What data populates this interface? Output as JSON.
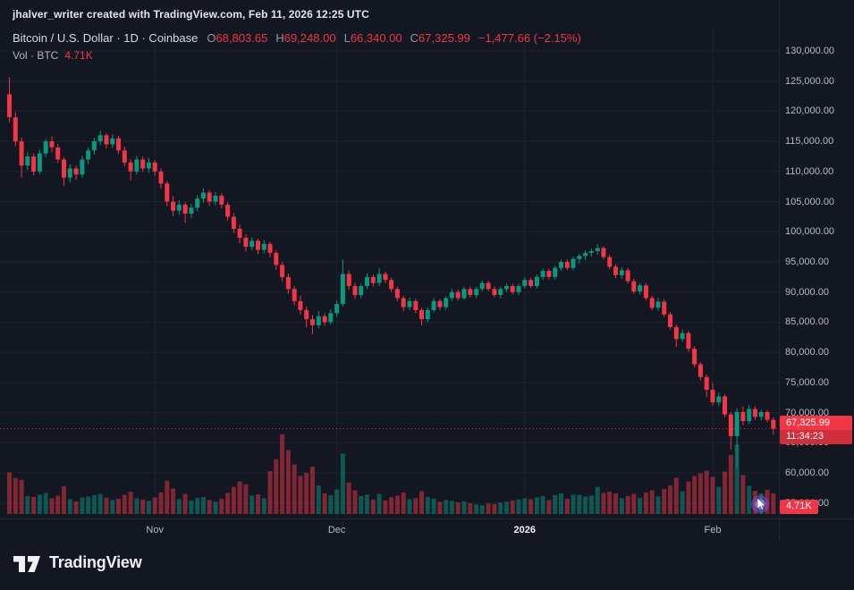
{
  "attribution": "jhalver_writer created with TradingView.com, Feb 11, 2026 12:25 UTC",
  "legend": {
    "title": "Bitcoin / U.S. Dollar · 1D · Coinbase",
    "o_label": "O",
    "o_value": "68,803.65",
    "h_label": "H",
    "h_value": "69,248.00",
    "l_label": "L",
    "l_value": "66,340.00",
    "c_label": "C",
    "c_value": "67,325.99",
    "change": "−1,477.66 (−2.15%)",
    "vol_title": "Vol · BTC",
    "vol_value": "4.71K"
  },
  "footer": {
    "logo_text": "TradingView"
  },
  "chart_data": {
    "type": "candlestick",
    "symbol": "Bitcoin / U.S. Dollar",
    "interval": "1D",
    "exchange": "Coinbase",
    "ohlc": {
      "open": 68803.65,
      "high": 69248.0,
      "low": 66340.0,
      "close": 67325.99,
      "change": -1477.66,
      "change_pct": -2.15
    },
    "last_price": 67325.99,
    "last_price_label": "67,325.99",
    "countdown": "11:34:23",
    "volume_label": "4.71K",
    "y_axis": {
      "max": 130000,
      "min": 55000,
      "step": 5000
    },
    "x_ticks": [
      {
        "i": 24,
        "label": "Nov"
      },
      {
        "i": 54,
        "label": "Dec"
      },
      {
        "i": 85,
        "label": "2026",
        "year": true
      },
      {
        "i": 116,
        "label": "Feb"
      }
    ],
    "colors": {
      "up": "#089981",
      "down": "#f23645",
      "up_volume": "rgba(8,153,129,0.5)",
      "down_volume": "rgba(242,54,69,0.5)",
      "background": "#131722",
      "grid": "#1e222d"
    },
    "candle_fields": [
      "open",
      "high",
      "low",
      "close",
      "volume_k_btc"
    ],
    "candles": [
      [
        122800,
        125600,
        118200,
        119000,
        9.5
      ],
      [
        119000,
        119800,
        114200,
        115000,
        8.2
      ],
      [
        115000,
        115600,
        109000,
        111000,
        7.8
      ],
      [
        111000,
        113200,
        110200,
        112500,
        4.1
      ],
      [
        112500,
        113000,
        109400,
        110000,
        3.9
      ],
      [
        110000,
        113600,
        109600,
        113000,
        4.4
      ],
      [
        113000,
        115400,
        112400,
        115000,
        4.8
      ],
      [
        115000,
        115800,
        113200,
        114000,
        3.6
      ],
      [
        114000,
        114600,
        111400,
        112000,
        4.2
      ],
      [
        112000,
        112400,
        107600,
        109000,
        6.3
      ],
      [
        109000,
        111200,
        108200,
        110500,
        3.4
      ],
      [
        110500,
        111000,
        108600,
        109500,
        2.9
      ],
      [
        109500,
        112600,
        109000,
        112000,
        3.8
      ],
      [
        112000,
        114000,
        111200,
        113500,
        4.0
      ],
      [
        113500,
        115600,
        112800,
        115000,
        4.3
      ],
      [
        115000,
        116800,
        114400,
        116000,
        4.6
      ],
      [
        116000,
        116400,
        113800,
        114500,
        3.7
      ],
      [
        114500,
        116200,
        113900,
        115500,
        3.2
      ],
      [
        115500,
        115900,
        112900,
        113500,
        3.5
      ],
      [
        113500,
        114100,
        110900,
        111500,
        4.4
      ],
      [
        111500,
        112000,
        108500,
        110000,
        5.1
      ],
      [
        110000,
        112600,
        109500,
        112000,
        3.6
      ],
      [
        112000,
        112500,
        109900,
        110500,
        3.3
      ],
      [
        110500,
        112300,
        109800,
        111500,
        3.0
      ],
      [
        111500,
        111900,
        109300,
        110000,
        3.8
      ],
      [
        110000,
        110500,
        107200,
        108000,
        4.9
      ],
      [
        108000,
        108400,
        104200,
        105000,
        7.6
      ],
      [
        105000,
        105900,
        102600,
        103500,
        5.8
      ],
      [
        103500,
        105200,
        102800,
        104500,
        3.4
      ],
      [
        104500,
        104900,
        101500,
        103000,
        4.6
      ],
      [
        103000,
        104700,
        102300,
        104000,
        3.1
      ],
      [
        104000,
        106100,
        103400,
        105500,
        3.7
      ],
      [
        105500,
        107200,
        104800,
        106500,
        3.9
      ],
      [
        106500,
        106900,
        104300,
        105000,
        3.2
      ],
      [
        105000,
        106600,
        104400,
        106000,
        2.8
      ],
      [
        106000,
        106400,
        103900,
        104500,
        3.5
      ],
      [
        104500,
        104900,
        101900,
        102500,
        4.8
      ],
      [
        102500,
        103100,
        99800,
        100500,
        6.2
      ],
      [
        100500,
        101200,
        98100,
        99000,
        7.4
      ],
      [
        99000,
        99600,
        96700,
        97500,
        6.8
      ],
      [
        97500,
        99100,
        96900,
        98500,
        4.2
      ],
      [
        98500,
        98900,
        96300,
        97000,
        4.5
      ],
      [
        97000,
        98600,
        96400,
        98000,
        3.6
      ],
      [
        98000,
        98400,
        95800,
        96500,
        9.8
      ],
      [
        96500,
        96900,
        93700,
        94500,
        12.5
      ],
      [
        94500,
        95000,
        91800,
        92500,
        18.2
      ],
      [
        92500,
        93100,
        89700,
        90500,
        14.6
      ],
      [
        90500,
        91000,
        87800,
        88500,
        11.3
      ],
      [
        88500,
        89400,
        86300,
        87000,
        8.7
      ],
      [
        87000,
        87600,
        84100,
        85500,
        9.4
      ],
      [
        85500,
        86200,
        83000,
        84500,
        10.8
      ],
      [
        84500,
        86800,
        84000,
        86000,
        6.5
      ],
      [
        86000,
        86500,
        84400,
        85000,
        4.7
      ],
      [
        85000,
        87100,
        84600,
        86500,
        4.3
      ],
      [
        86500,
        88600,
        85900,
        88000,
        5.6
      ],
      [
        88000,
        95400,
        87600,
        93000,
        13.8
      ],
      [
        93000,
        93600,
        90400,
        91000,
        7.2
      ],
      [
        91000,
        91500,
        88900,
        89500,
        5.4
      ],
      [
        89500,
        91400,
        89000,
        91000,
        4.1
      ],
      [
        91000,
        93100,
        90500,
        92500,
        4.4
      ],
      [
        92500,
        92900,
        90900,
        91500,
        3.3
      ],
      [
        91500,
        94000,
        91000,
        93000,
        4.6
      ],
      [
        93000,
        93400,
        91500,
        92000,
        3.1
      ],
      [
        92000,
        92400,
        90000,
        90500,
        3.8
      ],
      [
        90500,
        90900,
        88500,
        89000,
        4.2
      ],
      [
        89000,
        89400,
        86900,
        87500,
        4.9
      ],
      [
        87500,
        89100,
        87000,
        88500,
        3.4
      ],
      [
        88500,
        88900,
        86500,
        87000,
        3.6
      ],
      [
        87000,
        87400,
        84500,
        85500,
        5.2
      ],
      [
        85500,
        87500,
        85000,
        87000,
        3.9
      ],
      [
        87000,
        89000,
        86600,
        88500,
        3.5
      ],
      [
        88500,
        88900,
        87000,
        87500,
        2.8
      ],
      [
        87500,
        89400,
        87100,
        89000,
        3.2
      ],
      [
        89000,
        90500,
        88500,
        90000,
        3.0
      ],
      [
        90000,
        90400,
        88600,
        89000,
        2.7
      ],
      [
        89000,
        90900,
        88700,
        90500,
        2.9
      ],
      [
        90500,
        90900,
        89100,
        89500,
        2.5
      ],
      [
        89500,
        90900,
        89000,
        90500,
        2.2
      ],
      [
        90500,
        91900,
        90100,
        91500,
        2.0
      ],
      [
        91500,
        91900,
        90100,
        90500,
        2.4
      ],
      [
        90500,
        90900,
        89100,
        89500,
        2.3
      ],
      [
        89500,
        90900,
        89000,
        90500,
        2.6
      ],
      [
        90500,
        91400,
        90000,
        91000,
        2.8
      ],
      [
        91000,
        91400,
        89600,
        90000,
        3.1
      ],
      [
        90000,
        91400,
        89500,
        91000,
        3.3
      ],
      [
        91000,
        92400,
        90600,
        92000,
        3.6
      ],
      [
        92000,
        92400,
        90700,
        91000,
        3.4
      ],
      [
        91000,
        92900,
        90600,
        92500,
        3.8
      ],
      [
        92500,
        93900,
        92000,
        93500,
        4.1
      ],
      [
        93500,
        93900,
        92100,
        92500,
        3.2
      ],
      [
        92500,
        94400,
        92100,
        94000,
        4.3
      ],
      [
        94000,
        95400,
        93500,
        95000,
        4.7
      ],
      [
        95000,
        95400,
        93700,
        94000,
        3.5
      ],
      [
        94000,
        95900,
        93600,
        95500,
        4.4
      ],
      [
        95500,
        96400,
        94700,
        96000,
        4.4
      ],
      [
        96000,
        96900,
        95300,
        96500,
        4.0
      ],
      [
        96500,
        97200,
        95900,
        96800,
        4.2
      ],
      [
        96800,
        97900,
        96200,
        97300,
        6.2
      ],
      [
        97300,
        97600,
        95400,
        95800,
        4.8
      ],
      [
        95800,
        96200,
        93800,
        94200,
        5.1
      ],
      [
        94200,
        94600,
        92300,
        92800,
        4.7
      ],
      [
        92800,
        94100,
        92200,
        93600,
        3.6
      ],
      [
        93600,
        94000,
        91400,
        91800,
        4.1
      ],
      [
        91800,
        92200,
        89700,
        90100,
        4.6
      ],
      [
        90100,
        91500,
        89600,
        91100,
        3.7
      ],
      [
        91100,
        91500,
        88600,
        89000,
        4.9
      ],
      [
        89000,
        89400,
        87000,
        87400,
        5.4
      ],
      [
        87400,
        89000,
        86900,
        88400,
        4.0
      ],
      [
        88400,
        88800,
        85900,
        86300,
        5.7
      ],
      [
        86300,
        86700,
        83800,
        84200,
        6.5
      ],
      [
        84200,
        84600,
        80900,
        82200,
        8.3
      ],
      [
        82200,
        83800,
        81700,
        83200,
        5.2
      ],
      [
        83200,
        83600,
        80100,
        80600,
        7.4
      ],
      [
        80600,
        81000,
        77500,
        78000,
        8.7
      ],
      [
        78000,
        78400,
        75300,
        75900,
        9.3
      ],
      [
        75900,
        76300,
        72600,
        73800,
        9.9
      ],
      [
        73800,
        74900,
        71200,
        71700,
        8.5
      ],
      [
        71700,
        73300,
        71100,
        72700,
        6.2
      ],
      [
        72700,
        73100,
        69200,
        69700,
        9.7
      ],
      [
        69700,
        70100,
        63900,
        66100,
        13.5
      ],
      [
        66100,
        70700,
        60800,
        70100,
        15.9
      ],
      [
        70100,
        71000,
        67900,
        68600,
        8.9
      ],
      [
        68600,
        71300,
        68100,
        70600,
        6.4
      ],
      [
        70600,
        71000,
        68800,
        69300,
        5.3
      ],
      [
        69300,
        70500,
        68700,
        70100,
        4.7
      ],
      [
        70100,
        70400,
        68400,
        68803.65,
        5.5
      ],
      [
        68803.65,
        69248,
        66340,
        67325.99,
        4.71
      ]
    ]
  }
}
